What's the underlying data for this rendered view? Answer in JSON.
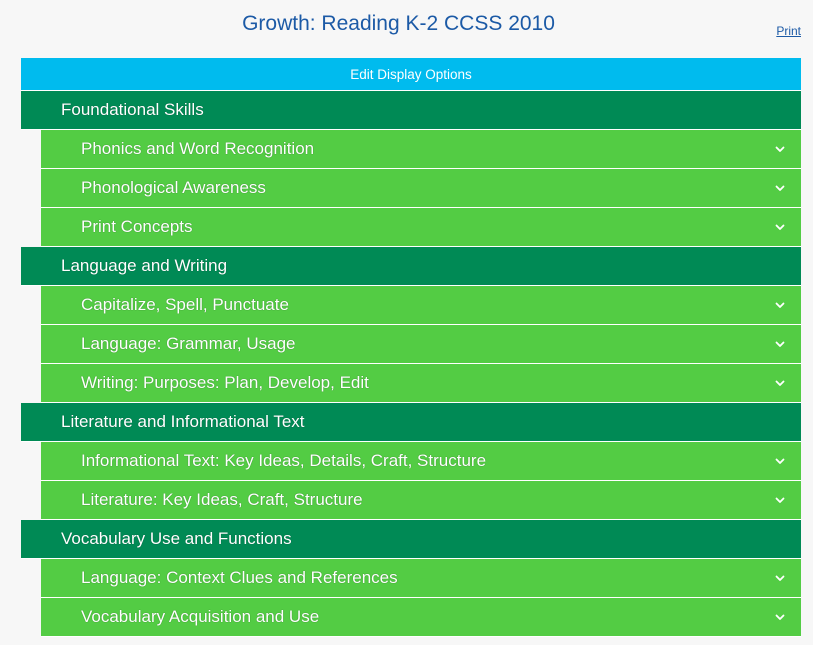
{
  "header": {
    "title": "Growth: Reading K-2 CCSS 2010",
    "print_label": "Print"
  },
  "edit_display_options_label": "Edit Display Options",
  "sections": [
    {
      "title": "Foundational Skills",
      "items": [
        {
          "label": "Phonics and Word Recognition",
          "icon": "chevron-down-icon"
        },
        {
          "label": "Phonological Awareness",
          "icon": "chevron-down-icon"
        },
        {
          "label": "Print Concepts",
          "icon": "chevron-down-icon"
        }
      ]
    },
    {
      "title": "Language and Writing",
      "items": [
        {
          "label": "Capitalize, Spell, Punctuate",
          "icon": "chevron-down-icon"
        },
        {
          "label": "Language: Grammar, Usage",
          "icon": "chevron-down-icon"
        },
        {
          "label": "Writing: Purposes: Plan, Develop, Edit",
          "icon": "chevron-down-icon"
        }
      ]
    },
    {
      "title": "Literature and Informational Text",
      "items": [
        {
          "label": "Informational Text: Key Ideas, Details, Craft, Structure",
          "icon": "chevron-down-icon"
        },
        {
          "label": "Literature: Key Ideas, Craft, Structure",
          "icon": "chevron-down-icon"
        }
      ]
    },
    {
      "title": "Vocabulary Use and Functions",
      "items": [
        {
          "label": "Language: Context Clues and References",
          "icon": "chevron-down-icon"
        },
        {
          "label": "Vocabulary Acquisition and Use",
          "icon": "chevron-down-icon"
        }
      ]
    }
  ],
  "colors": {
    "title": "#1c5aa6",
    "edit_bar": "#00bbee",
    "section": "#008a55",
    "row": "#53cc44"
  }
}
